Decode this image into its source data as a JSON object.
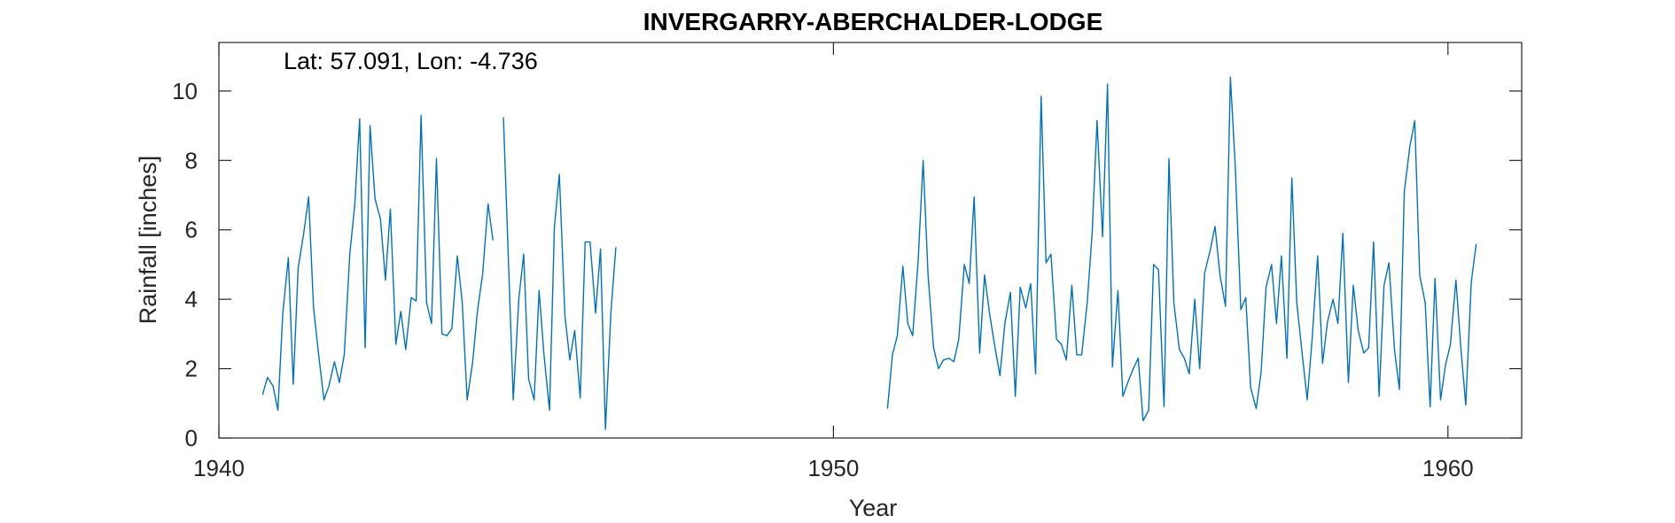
{
  "chart_data": {
    "type": "line",
    "title": "INVERGARRY-ABERCHALDER-LODGE",
    "annotation": "Lat: 57.091, Lon: -4.736",
    "xlabel": "Year",
    "ylabel": "Rainfall [inches]",
    "xlim": [
      1940,
      1961.2
    ],
    "ylim": [
      0,
      11.4
    ],
    "xticks": [
      1940,
      1950,
      1960
    ],
    "yticks": [
      0,
      2,
      4,
      6,
      8,
      10
    ],
    "box": true,
    "grid": false,
    "colors": {
      "line": "#0072BD",
      "axes": "#262626"
    },
    "series": [
      {
        "segments": [
          [
            [
              1940.71,
              1.25
            ],
            [
              1940.79,
              1.75
            ],
            [
              1940.88,
              1.5
            ],
            [
              1940.96,
              0.8
            ],
            [
              1941.04,
              3.6
            ],
            [
              1941.13,
              5.2
            ],
            [
              1941.21,
              1.55
            ],
            [
              1941.29,
              4.9
            ],
            [
              1941.38,
              5.9
            ],
            [
              1941.46,
              6.95
            ],
            [
              1941.54,
              3.75
            ],
            [
              1941.63,
              2.3
            ],
            [
              1941.71,
              1.1
            ],
            [
              1941.79,
              1.5
            ],
            [
              1941.88,
              2.2
            ],
            [
              1941.96,
              1.6
            ],
            [
              1942.04,
              2.4
            ],
            [
              1942.13,
              5.3
            ],
            [
              1942.21,
              6.7
            ],
            [
              1942.29,
              9.2
            ],
            [
              1942.38,
              2.6
            ],
            [
              1942.46,
              9.0
            ],
            [
              1942.54,
              6.9
            ],
            [
              1942.63,
              6.3
            ],
            [
              1942.71,
              4.55
            ],
            [
              1942.79,
              6.6
            ],
            [
              1942.88,
              2.7
            ],
            [
              1942.96,
              3.65
            ],
            [
              1943.04,
              2.55
            ],
            [
              1943.13,
              4.05
            ],
            [
              1943.21,
              3.95
            ],
            [
              1943.29,
              9.3
            ],
            [
              1943.38,
              3.9
            ],
            [
              1943.46,
              3.3
            ],
            [
              1943.54,
              8.05
            ],
            [
              1943.63,
              3.0
            ],
            [
              1943.71,
              2.95
            ],
            [
              1943.79,
              3.15
            ],
            [
              1943.88,
              5.25
            ],
            [
              1943.96,
              3.9
            ],
            [
              1944.04,
              1.1
            ],
            [
              1944.13,
              2.2
            ],
            [
              1944.21,
              3.7
            ],
            [
              1944.29,
              4.7
            ],
            [
              1944.38,
              6.75
            ],
            [
              1944.46,
              5.7
            ]
          ],
          [
            [
              1944.63,
              9.25
            ],
            [
              1944.71,
              5.2
            ],
            [
              1944.79,
              1.1
            ],
            [
              1944.88,
              4.0
            ],
            [
              1944.96,
              5.3
            ],
            [
              1945.04,
              1.7
            ],
            [
              1945.13,
              1.1
            ],
            [
              1945.21,
              4.25
            ],
            [
              1945.29,
              2.4
            ],
            [
              1945.38,
              0.8
            ],
            [
              1945.46,
              6.1
            ],
            [
              1945.54,
              7.6
            ],
            [
              1945.63,
              3.55
            ],
            [
              1945.71,
              2.25
            ],
            [
              1945.79,
              3.1
            ],
            [
              1945.88,
              1.15
            ],
            [
              1945.96,
              5.65
            ],
            [
              1946.04,
              5.65
            ],
            [
              1946.13,
              3.6
            ],
            [
              1946.21,
              5.45
            ],
            [
              1946.29,
              0.25
            ],
            [
              1946.38,
              3.65
            ],
            [
              1946.46,
              5.5
            ]
          ],
          [
            [
              1950.88,
              0.85
            ],
            [
              1950.96,
              2.4
            ],
            [
              1951.04,
              2.95
            ],
            [
              1951.13,
              4.95
            ],
            [
              1951.21,
              3.3
            ],
            [
              1951.29,
              2.95
            ],
            [
              1951.38,
              5.15
            ],
            [
              1951.46,
              8.0
            ],
            [
              1951.54,
              4.7
            ],
            [
              1951.63,
              2.6
            ],
            [
              1951.71,
              2.0
            ],
            [
              1951.79,
              2.25
            ],
            [
              1951.88,
              2.3
            ],
            [
              1951.96,
              2.2
            ],
            [
              1952.04,
              2.85
            ],
            [
              1952.13,
              5.0
            ],
            [
              1952.21,
              4.45
            ],
            [
              1952.29,
              6.95
            ],
            [
              1952.38,
              2.45
            ],
            [
              1952.46,
              4.7
            ],
            [
              1952.54,
              3.6
            ],
            [
              1952.63,
              2.6
            ],
            [
              1952.71,
              1.8
            ],
            [
              1952.79,
              3.3
            ],
            [
              1952.88,
              4.2
            ],
            [
              1952.96,
              1.2
            ],
            [
              1953.04,
              4.35
            ],
            [
              1953.13,
              3.75
            ],
            [
              1953.21,
              4.45
            ],
            [
              1953.29,
              1.85
            ],
            [
              1953.38,
              9.85
            ],
            [
              1953.46,
              5.05
            ],
            [
              1953.54,
              5.3
            ],
            [
              1953.63,
              2.85
            ],
            [
              1953.71,
              2.7
            ],
            [
              1953.79,
              2.25
            ],
            [
              1953.88,
              4.4
            ],
            [
              1953.96,
              2.4
            ],
            [
              1954.04,
              2.4
            ],
            [
              1954.13,
              3.9
            ],
            [
              1954.21,
              5.9
            ],
            [
              1954.29,
              9.15
            ],
            [
              1954.38,
              5.8
            ],
            [
              1954.46,
              10.2
            ],
            [
              1954.54,
              2.05
            ],
            [
              1954.63,
              4.25
            ],
            [
              1954.71,
              1.2
            ],
            [
              1954.79,
              1.6
            ],
            [
              1954.88,
              2.0
            ],
            [
              1954.96,
              2.3
            ],
            [
              1955.04,
              0.5
            ],
            [
              1955.13,
              0.8
            ],
            [
              1955.21,
              5.0
            ],
            [
              1955.29,
              4.85
            ],
            [
              1955.38,
              0.9
            ],
            [
              1955.46,
              8.05
            ],
            [
              1955.54,
              3.9
            ],
            [
              1955.63,
              2.55
            ],
            [
              1955.71,
              2.3
            ],
            [
              1955.79,
              1.85
            ],
            [
              1955.88,
              4.0
            ],
            [
              1955.96,
              2.0
            ],
            [
              1956.04,
              4.75
            ],
            [
              1956.13,
              5.4
            ],
            [
              1956.21,
              6.1
            ],
            [
              1956.29,
              4.7
            ],
            [
              1956.38,
              3.8
            ],
            [
              1956.46,
              10.4
            ],
            [
              1956.54,
              7.8
            ],
            [
              1956.63,
              3.7
            ],
            [
              1956.71,
              4.05
            ],
            [
              1956.79,
              1.45
            ],
            [
              1956.88,
              0.85
            ],
            [
              1956.96,
              1.9
            ],
            [
              1957.04,
              4.35
            ],
            [
              1957.13,
              5.0
            ],
            [
              1957.21,
              3.3
            ],
            [
              1957.29,
              5.25
            ],
            [
              1957.38,
              2.3
            ],
            [
              1957.46,
              7.5
            ],
            [
              1957.54,
              3.9
            ],
            [
              1957.63,
              2.4
            ],
            [
              1957.71,
              1.1
            ],
            [
              1957.79,
              2.85
            ],
            [
              1957.88,
              5.25
            ],
            [
              1957.96,
              2.15
            ],
            [
              1958.04,
              3.35
            ],
            [
              1958.13,
              4.0
            ],
            [
              1958.21,
              3.3
            ],
            [
              1958.29,
              5.9
            ],
            [
              1958.38,
              1.6
            ],
            [
              1958.46,
              4.4
            ],
            [
              1958.54,
              3.1
            ],
            [
              1958.63,
              2.45
            ],
            [
              1958.71,
              2.6
            ],
            [
              1958.79,
              5.65
            ],
            [
              1958.88,
              1.2
            ],
            [
              1958.96,
              4.4
            ],
            [
              1959.04,
              5.05
            ],
            [
              1959.13,
              2.55
            ],
            [
              1959.21,
              1.4
            ],
            [
              1959.29,
              7.1
            ],
            [
              1959.38,
              8.4
            ],
            [
              1959.46,
              9.15
            ],
            [
              1959.54,
              4.7
            ],
            [
              1959.63,
              3.9
            ],
            [
              1959.71,
              0.9
            ],
            [
              1959.79,
              4.6
            ],
            [
              1959.88,
              1.1
            ],
            [
              1959.96,
              2.1
            ],
            [
              1960.04,
              2.7
            ],
            [
              1960.13,
              4.55
            ],
            [
              1960.21,
              2.6
            ],
            [
              1960.29,
              0.95
            ],
            [
              1960.38,
              4.5
            ],
            [
              1960.46,
              5.6
            ]
          ]
        ]
      }
    ]
  }
}
